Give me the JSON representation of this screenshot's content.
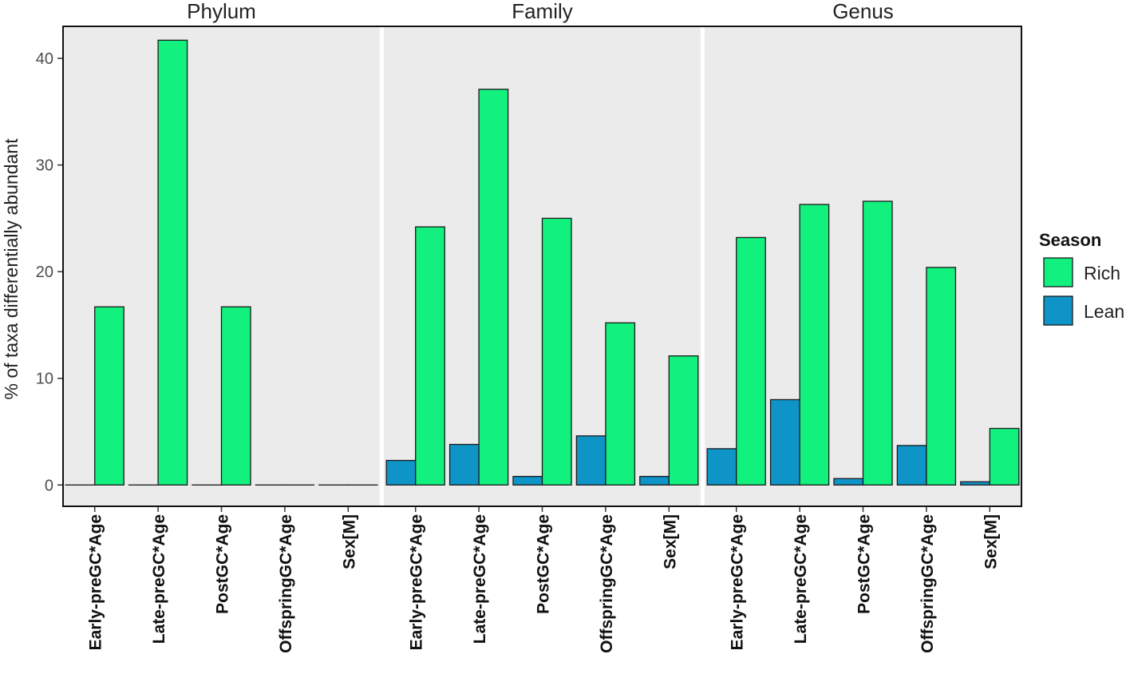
{
  "chart_data": {
    "type": "bar",
    "ylabel": "% of taxa differentially abundant",
    "ylim": [
      -2,
      43
    ],
    "yticks": [
      0,
      10,
      20,
      30,
      40
    ],
    "categories": [
      "Early-preGC*Age",
      "Late-preGC*Age",
      "PostGC*Age",
      "OffspringGC*Age",
      "Sex[M]"
    ],
    "legend": {
      "title": "Season",
      "position": "right",
      "entries": [
        {
          "name": "Rich",
          "color": "#12F07E"
        },
        {
          "name": "Lean",
          "color": "#0F94C8"
        }
      ]
    },
    "facets": [
      {
        "title": "Phylum",
        "series": [
          {
            "name": "Lean",
            "values": [
              0,
              0,
              0,
              0,
              0
            ]
          },
          {
            "name": "Rich",
            "values": [
              16.7,
              41.7,
              16.7,
              0,
              0
            ]
          }
        ]
      },
      {
        "title": "Family",
        "series": [
          {
            "name": "Lean",
            "values": [
              2.3,
              3.8,
              0.8,
              4.6,
              0.8
            ]
          },
          {
            "name": "Rich",
            "values": [
              24.2,
              37.1,
              25.0,
              15.2,
              12.1
            ]
          }
        ]
      },
      {
        "title": "Genus",
        "series": [
          {
            "name": "Lean",
            "values": [
              3.4,
              8.0,
              0.6,
              3.7,
              0.3
            ]
          },
          {
            "name": "Rich",
            "values": [
              23.2,
              26.3,
              26.6,
              20.4,
              5.3
            ]
          }
        ]
      }
    ]
  }
}
